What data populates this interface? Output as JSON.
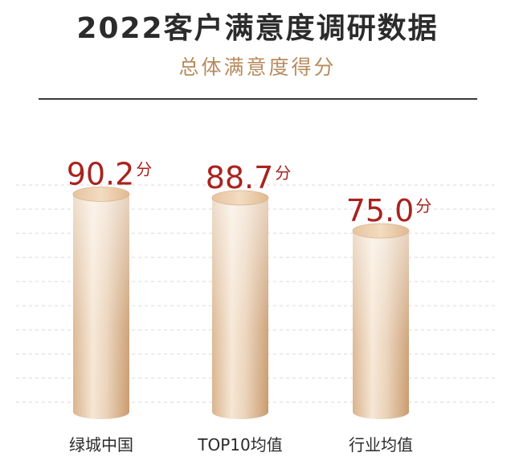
{
  "header": {
    "title": "2022客户满意度调研数据",
    "subtitle": "总体满意度得分"
  },
  "colors": {
    "title": "#2b2b2b",
    "subtitle": "#b88b5e",
    "value_label": "#a8231f",
    "bar_top": "#eccfae",
    "bar_body_light": "#fbf3ea",
    "bar_body_dark": "#d6ad84",
    "grid": "#d9d9d9"
  },
  "chart_data": {
    "type": "bar",
    "style": "3d-cylinder",
    "categories": [
      "绿城中国",
      "TOP10均值",
      "行业均值"
    ],
    "values": [
      90.2,
      88.7,
      75.0
    ],
    "value_labels": [
      "90.2",
      "88.7",
      "75.0"
    ],
    "unit": "分",
    "ylim": [
      0,
      100
    ],
    "grid": "dashed-horizontal"
  }
}
